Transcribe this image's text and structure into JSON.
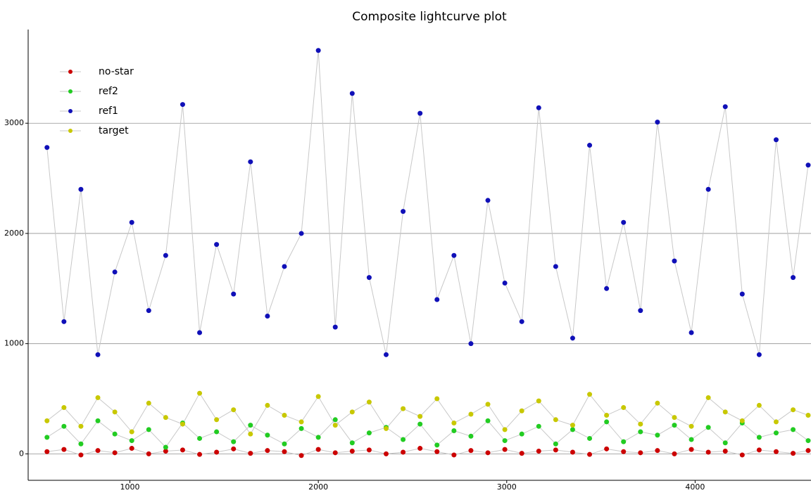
{
  "chart_data": {
    "type": "scatter",
    "title": "Composite lightcurve plot",
    "x": [
      560,
      650,
      740,
      830,
      920,
      1010,
      1100,
      1190,
      1280,
      1370,
      1460,
      1550,
      1640,
      1730,
      1820,
      1910,
      2000,
      2090,
      2180,
      2270,
      2360,
      2450,
      2540,
      2630,
      2720,
      2810,
      2900,
      2990,
      3080,
      3170,
      3260,
      3350,
      3440,
      3530,
      3620,
      3710,
      3800,
      3890,
      3980,
      4070,
      4160,
      4250,
      4340,
      4430,
      4520,
      4600
    ],
    "series": [
      {
        "name": "no-star",
        "color": "#cc0000",
        "values": [
          20,
          40,
          -10,
          30,
          10,
          50,
          0,
          25,
          35,
          -5,
          15,
          45,
          5,
          30,
          20,
          -15,
          40,
          10,
          25,
          35,
          0,
          15,
          50,
          20,
          -10,
          30,
          10,
          40,
          5,
          25,
          35,
          15,
          -5,
          45,
          20,
          10,
          30,
          0,
          40,
          15,
          25,
          -10,
          35,
          20,
          5,
          30
        ]
      },
      {
        "name": "ref2",
        "color": "#22cc22",
        "values": [
          150,
          250,
          90,
          300,
          180,
          120,
          220,
          60,
          280,
          140,
          200,
          110,
          260,
          170,
          90,
          230,
          150,
          310,
          100,
          190,
          240,
          130,
          270,
          80,
          210,
          160,
          300,
          120,
          180,
          250,
          90,
          220,
          140,
          290,
          110,
          200,
          170,
          260,
          130,
          240,
          100,
          280,
          150,
          190,
          220,
          120
        ]
      },
      {
        "name": "ref1",
        "color": "#1010b8",
        "values": [
          2780,
          1200,
          2400,
          900,
          1650,
          2100,
          1300,
          1800,
          3170,
          1100,
          1900,
          1450,
          2650,
          1250,
          1700,
          2000,
          3660,
          1150,
          3270,
          1600,
          900,
          2200,
          3090,
          1400,
          1800,
          1000,
          2300,
          1550,
          1200,
          3140,
          1700,
          1050,
          2800,
          1500,
          2100,
          1300,
          3010,
          1750,
          1100,
          2400,
          3150,
          1450,
          900,
          2850,
          1600,
          2620
        ]
      },
      {
        "name": "target",
        "color": "#c8c800",
        "values": [
          300,
          420,
          250,
          510,
          380,
          200,
          460,
          330,
          270,
          550,
          310,
          400,
          180,
          440,
          350,
          290,
          520,
          260,
          380,
          470,
          230,
          410,
          340,
          500,
          280,
          360,
          450,
          220,
          390,
          480,
          310,
          260,
          540,
          350,
          420,
          270,
          460,
          330,
          250,
          510,
          380,
          300,
          440,
          290,
          400,
          350
        ]
      }
    ],
    "line_color": "#c8c8c8",
    "xlim": [
      460,
      4615
    ],
    "xticks": [
      1000,
      2000,
      3000,
      4000
    ],
    "ylim": [
      -240,
      3850
    ],
    "yticks": [
      0,
      1000,
      2000,
      3000
    ],
    "grid": true,
    "legend": "upper left"
  }
}
